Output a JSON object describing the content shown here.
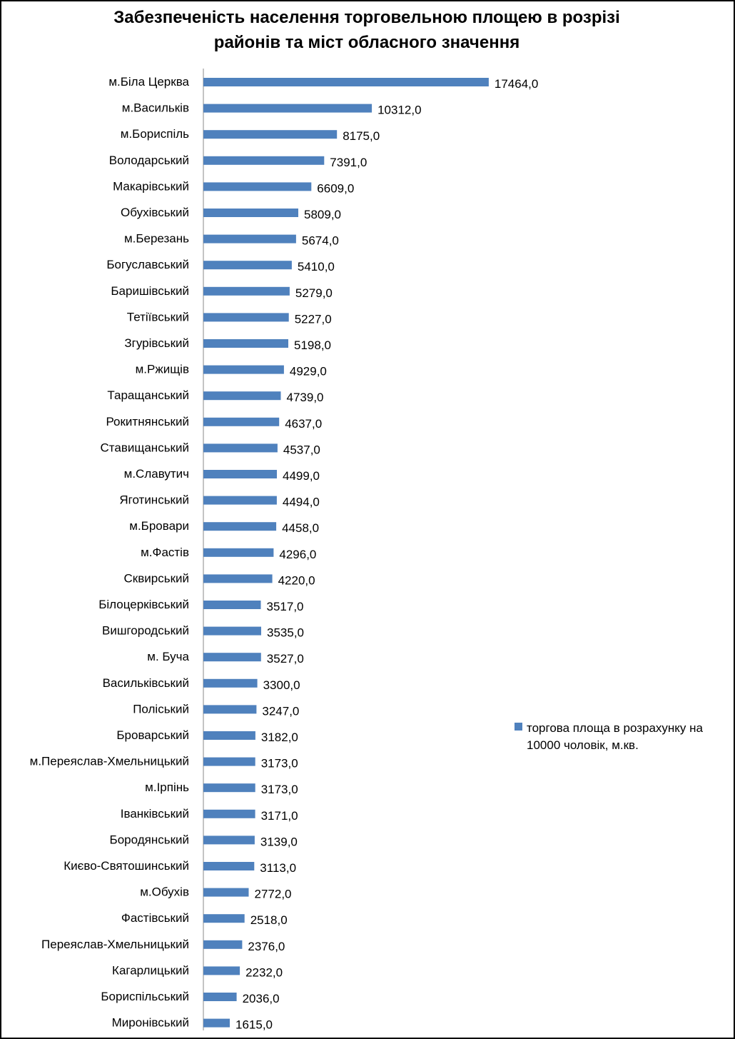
{
  "chart_data": {
    "type": "bar",
    "orientation": "horizontal",
    "title_lines": [
      "Забезпеченість населення торговельною площею в розрізі",
      "районів та міст обласного значення"
    ],
    "categories": [
      "м.Біла Церква",
      "м.Васильків",
      "м.Бориспіль",
      "Володарський",
      "Макарівський",
      "Обухівський",
      "м.Березань",
      "Богуславський",
      "Баришівський",
      "Тетіївський",
      "Згурівський",
      "м.Ржищів",
      "Таращанський",
      "Рокитнянський",
      "Ставищанський",
      "м.Славутич",
      "Яготинський",
      "м.Бровари",
      "м.Фастів",
      "Сквирський",
      "Білоцерківський",
      "Вишгородський",
      "м. Буча",
      "Васильківський",
      "Поліський",
      "Броварський",
      "м.Переяслав-Хмельницький",
      "м.Ірпінь",
      "Іванківський",
      "Бородянський",
      "Києво-Святошинський",
      "м.Обухів",
      "Фастівський",
      "Переяслав-Хмельницький",
      "Кагарлицький",
      "Бориспільський",
      "Миронівський"
    ],
    "values": [
      17464.0,
      10312.0,
      8175.0,
      7391.0,
      6609.0,
      5809.0,
      5674.0,
      5410.0,
      5279.0,
      5227.0,
      5198.0,
      4929.0,
      4739.0,
      4637.0,
      4537.0,
      4499.0,
      4494.0,
      4458.0,
      4296.0,
      4220.0,
      3517.0,
      3535.0,
      3527.0,
      3300.0,
      3247.0,
      3182.0,
      3173.0,
      3173.0,
      3171.0,
      3139.0,
      3113.0,
      2772.0,
      2518.0,
      2376.0,
      2232.0,
      2036.0,
      1615.0
    ],
    "value_labels": [
      "17464,0",
      "10312,0",
      "8175,0",
      "7391,0",
      "6609,0",
      "5809,0",
      "5674,0",
      "5410,0",
      "5279,0",
      "5227,0",
      "5198,0",
      "4929,0",
      "4739,0",
      "4637,0",
      "4537,0",
      "4499,0",
      "4494,0",
      "4458,0",
      "4296,0",
      "4220,0",
      "3517,0",
      "3535,0",
      "3527,0",
      "3300,0",
      "3247,0",
      "3182,0",
      "3173,0",
      "3173,0",
      "3171,0",
      "3139,0",
      "3113,0",
      "2772,0",
      "2518,0",
      "2376,0",
      "2232,0",
      "2036,0",
      "1615,0"
    ],
    "series_name_lines": [
      "торгова площа в розрахунку на",
      "10000 чоловік, м.кв."
    ],
    "legend_position": "right",
    "xlim": [
      0,
      18000
    ],
    "grid": false,
    "bar_color": "#4f81bd"
  }
}
